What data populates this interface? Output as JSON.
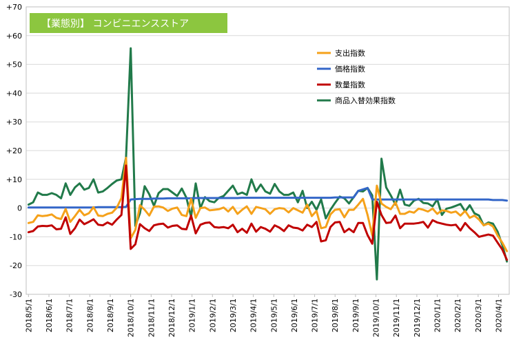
{
  "chart_data": {
    "type": "line",
    "title": "【業態別】 コンビニエンスストア",
    "title_bg_color": "#8cc63f",
    "ylim": [
      -30,
      70
    ],
    "yticks": [
      {
        "value": 70,
        "label": "+70"
      },
      {
        "value": 60,
        "label": "+60"
      },
      {
        "value": 50,
        "label": "+50"
      },
      {
        "value": 40,
        "label": "+40"
      },
      {
        "value": 30,
        "label": "+30"
      },
      {
        "value": 20,
        "label": "+20"
      },
      {
        "value": 10,
        "label": "+10"
      },
      {
        "value": 0,
        "label": "0"
      },
      {
        "value": -10,
        "label": "-10"
      },
      {
        "value": -20,
        "label": "-20"
      },
      {
        "value": -30,
        "label": "-30"
      }
    ],
    "xticks": [
      {
        "index": 0,
        "label": "2018/5/1"
      },
      {
        "index": 4.4,
        "label": "2018/6/1"
      },
      {
        "index": 8.8,
        "label": "2018/7/1"
      },
      {
        "index": 13.2,
        "label": "2018/8/1"
      },
      {
        "index": 17.6,
        "label": "2018/9/1"
      },
      {
        "index": 22,
        "label": "2018/10/1"
      },
      {
        "index": 26.4,
        "label": "2018/11/1"
      },
      {
        "index": 30.8,
        "label": "2018/12/1"
      },
      {
        "index": 35.2,
        "label": "2019/1/1"
      },
      {
        "index": 39.6,
        "label": "2019/2/1"
      },
      {
        "index": 44,
        "label": "2019/3/1"
      },
      {
        "index": 48.4,
        "label": "2019/4/1"
      },
      {
        "index": 52.8,
        "label": "2019/5/1"
      },
      {
        "index": 57.2,
        "label": "2019/6/1"
      },
      {
        "index": 61.6,
        "label": "2019/7/1"
      },
      {
        "index": 66,
        "label": "2019/8/1"
      },
      {
        "index": 70.4,
        "label": "2019/9/1"
      },
      {
        "index": 74.8,
        "label": "2019/10/1"
      },
      {
        "index": 79.2,
        "label": "2019/11/1"
      },
      {
        "index": 83.6,
        "label": "2019/12/1"
      },
      {
        "index": 88,
        "label": "2020/1/1"
      },
      {
        "index": 92.4,
        "label": "2020/2/1"
      },
      {
        "index": 96.8,
        "label": "2020/3/1"
      },
      {
        "index": 101.2,
        "label": "2020/4/1"
      }
    ],
    "n_points": 104,
    "series": [
      {
        "name": "支出指数",
        "color": "#f5a11a",
        "values": [
          -5.2,
          -4.8,
          -2.5,
          -2.8,
          -2.6,
          -2.2,
          -3.4,
          -3.8,
          -0.3,
          -4.8,
          -2.8,
          -0.6,
          -2.5,
          -1.8,
          0.3,
          -2.6,
          -2.8,
          -2.0,
          -1.6,
          0.1,
          3.5,
          17.5,
          -10.5,
          -7.6,
          1.0,
          -0.6,
          -2.6,
          0.5,
          0.6,
          0.2,
          -1.0,
          -0.2,
          0.2,
          -2.4,
          -2.8,
          3.2,
          -3.4,
          0.0,
          0.2,
          -0.8,
          -0.6,
          -0.4,
          0.2,
          -1.2,
          0.4,
          -2.0,
          -0.6,
          0.6,
          -2.0,
          0.4,
          0.0,
          -0.4,
          -2.0,
          -0.4,
          0.0,
          -0.2,
          -1.5,
          0.0,
          -0.8,
          -1.6,
          1.2,
          -2.8,
          -1.0,
          -7.0,
          -6.6,
          -2.2,
          -0.6,
          -0.4,
          -3.2,
          -0.6,
          -0.6,
          1.2,
          3.2,
          -2.4,
          -9.5,
          7.8,
          1.6,
          0.4,
          -0.4,
          2.0,
          -2.0,
          -2.0,
          -1.2,
          -1.6,
          -0.2,
          -0.6,
          -1.2,
          -0.2,
          -2.0,
          -0.8,
          -1.0,
          -1.6,
          -1.2,
          -2.6,
          -1.0,
          -3.4,
          -2.6,
          -4.0,
          -6.0,
          -5.4,
          -6.4,
          -9.5,
          -12.0,
          -15.0
        ]
      },
      {
        "name": "価格指数",
        "color": "#3366c8",
        "values": [
          0.2,
          0.2,
          0.2,
          0.2,
          0.2,
          0.2,
          0.2,
          0.2,
          0.2,
          0.2,
          0.2,
          0.2,
          0.2,
          0.2,
          0.2,
          0.3,
          0.3,
          0.3,
          0.3,
          0.3,
          0.3,
          0.4,
          3.0,
          3.1,
          3.2,
          3.2,
          3.2,
          3.3,
          3.3,
          3.3,
          3.4,
          3.4,
          3.4,
          3.4,
          3.4,
          3.4,
          3.5,
          3.5,
          3.5,
          3.5,
          3.5,
          3.5,
          3.5,
          3.5,
          3.5,
          3.5,
          3.6,
          3.6,
          3.6,
          3.6,
          3.6,
          3.6,
          3.6,
          3.6,
          3.6,
          3.6,
          3.6,
          3.6,
          3.6,
          3.6,
          3.6,
          3.6,
          3.6,
          3.6,
          3.6,
          3.6,
          3.7,
          3.7,
          3.7,
          3.7,
          3.7,
          6.0,
          6.5,
          7.0,
          3.0,
          3.0,
          3.0,
          3.0,
          3.0,
          3.0,
          3.0,
          3.0,
          3.0,
          3.0,
          3.0,
          3.0,
          3.0,
          3.0,
          3.0,
          3.0,
          3.0,
          3.0,
          3.0,
          3.0,
          3.0,
          3.0,
          3.0,
          3.0,
          3.0,
          3.0,
          2.8,
          2.8,
          2.8,
          2.6
        ]
      },
      {
        "name": "数量指数",
        "color": "#c00000",
        "values": [
          -8.4,
          -8.0,
          -6.4,
          -6.2,
          -6.3,
          -6.0,
          -7.4,
          -7.2,
          -3.2,
          -9.0,
          -7.0,
          -4.0,
          -5.6,
          -4.8,
          -3.9,
          -5.8,
          -6.0,
          -5.0,
          -5.8,
          -4.0,
          -2.4,
          14.8,
          -14.2,
          -12.6,
          -5.6,
          -7.0,
          -8.0,
          -6.0,
          -5.6,
          -5.4,
          -6.8,
          -6.2,
          -6.0,
          -7.2,
          -7.4,
          -2.6,
          -8.8,
          -5.8,
          -5.2,
          -5.0,
          -6.6,
          -6.8,
          -6.6,
          -7.0,
          -5.8,
          -8.4,
          -7.2,
          -8.6,
          -5.4,
          -8.2,
          -6.6,
          -7.2,
          -8.2,
          -6.0,
          -6.8,
          -8.0,
          -6.0,
          -6.8,
          -7.0,
          -7.8,
          -5.8,
          -6.6,
          -4.8,
          -11.6,
          -11.2,
          -6.6,
          -5.0,
          -4.8,
          -8.4,
          -7.2,
          -8.4,
          -5.2,
          -5.2,
          -9.4,
          -12.4,
          2.2,
          -2.4,
          -5.2,
          -5.0,
          -2.6,
          -7.0,
          -5.4,
          -5.4,
          -5.4,
          -5.2,
          -4.8,
          -6.8,
          -4.2,
          -5.0,
          -5.4,
          -5.8,
          -6.0,
          -5.8,
          -7.8,
          -5.2,
          -7.0,
          -8.4,
          -10.0,
          -9.6,
          -9.2,
          -9.6,
          -12.0,
          -14.4,
          -18.0
        ]
      },
      {
        "name": "商品入替効果指数",
        "color": "#217a4a",
        "values": [
          1.2,
          2.0,
          5.4,
          4.6,
          4.6,
          5.2,
          4.6,
          3.4,
          8.6,
          4.6,
          7.2,
          8.6,
          6.4,
          7.0,
          10.0,
          5.4,
          5.8,
          7.0,
          8.4,
          9.6,
          10.0,
          17.6,
          55.6,
          -6.2,
          -1.8,
          7.6,
          4.8,
          0.8,
          5.2,
          6.6,
          6.6,
          5.4,
          4.2,
          6.8,
          3.6,
          -3.0,
          8.6,
          0.0,
          3.8,
          2.4,
          2.0,
          3.6,
          4.2,
          6.0,
          7.8,
          4.8,
          5.4,
          4.6,
          10.0,
          5.8,
          8.2,
          5.8,
          5.0,
          8.4,
          5.8,
          4.6,
          4.6,
          5.4,
          2.0,
          6.0,
          0.0,
          2.2,
          -0.6,
          3.0,
          -3.6,
          -0.6,
          1.8,
          4.0,
          3.4,
          1.6,
          3.8,
          6.0,
          5.8,
          7.0,
          4.4,
          -24.8,
          17.2,
          7.2,
          4.4,
          1.2,
          6.4,
          1.2,
          0.8,
          2.6,
          3.2,
          1.8,
          1.6,
          0.6,
          3.0,
          -2.4,
          -0.2,
          0.2,
          0.8,
          1.4,
          -1.2,
          1.0,
          -1.8,
          -2.6,
          -6.0,
          -5.0,
          -5.4,
          -8.2,
          -12.8,
          -18.6
        ]
      }
    ]
  }
}
